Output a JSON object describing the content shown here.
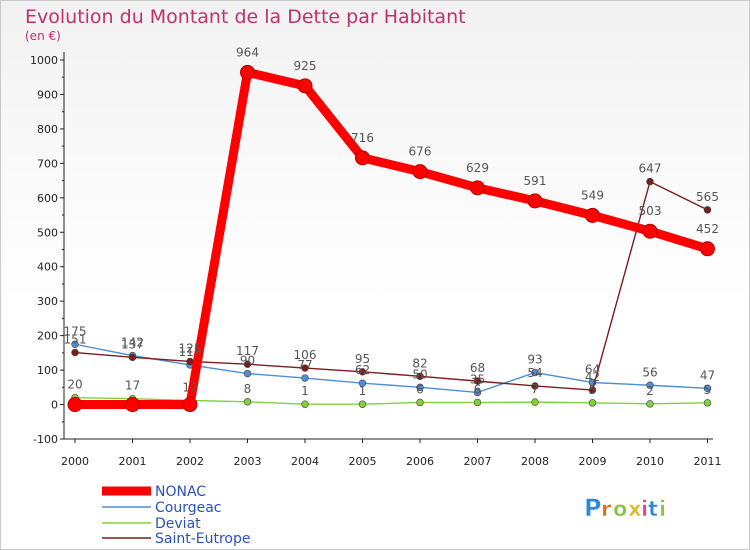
{
  "chart_data": {
    "type": "line",
    "title": "Evolution du Montant de la Dette par Habitant",
    "subtitle": "(en €)",
    "x": [
      "2000",
      "2001",
      "2002",
      "2003",
      "2004",
      "2005",
      "2006",
      "2007",
      "2008",
      "2009",
      "2010",
      "2011"
    ],
    "ylim": [
      -100,
      1000
    ],
    "yticks": [
      -100,
      0,
      100,
      200,
      300,
      400,
      500,
      600,
      700,
      800,
      900,
      1000
    ],
    "series": [
      {
        "name": "NONAC",
        "color": "#ff0000",
        "values": [
          0,
          0,
          0,
          964,
          925,
          716,
          676,
          629,
          591,
          549,
          503,
          452
        ],
        "labels": [
          "",
          "",
          "",
          "964",
          "925",
          "716",
          "676",
          "629",
          "591",
          "549",
          "503",
          "452"
        ]
      },
      {
        "name": "Courgeac",
        "color": "#4d8fd6",
        "values": [
          175,
          142,
          115,
          90,
          77,
          62,
          50,
          35,
          93,
          64,
          56,
          47
        ],
        "labels": [
          "175",
          "142",
          "115",
          "90",
          "77",
          "62",
          "50",
          "35",
          "93",
          "64",
          "56",
          "47"
        ]
      },
      {
        "name": "Deviat",
        "color": "#80d040",
        "values": [
          20,
          17,
          12,
          8,
          1,
          1,
          6,
          6,
          7,
          5,
          2,
          5
        ],
        "labels": [
          "20",
          "17",
          "12",
          "8",
          "1",
          "1",
          "6",
          "6",
          "7",
          "5",
          "2",
          "5"
        ]
      },
      {
        "name": "Saint-Eutrope",
        "color": "#7a1d1d",
        "values": [
          151,
          137,
          125,
          117,
          106,
          95,
          82,
          68,
          54,
          42,
          647,
          565
        ],
        "labels": [
          "151",
          "137",
          "125",
          "117",
          "106",
          "95",
          "82",
          "68",
          "54",
          "42",
          "647",
          "565"
        ]
      }
    ],
    "legend": [
      "NONAC",
      "Courgeac",
      "Deviat",
      "Saint-Eutrope"
    ],
    "legend_position": "bottom-left",
    "grid": false
  },
  "brand": {
    "letters": [
      "P",
      "r",
      "o",
      "x",
      "i",
      "t",
      "i"
    ],
    "colors": [
      "#2e86d6",
      "#e86a1a",
      "#8ac43f",
      "#e8b51a",
      "#d94a8c",
      "#2e86d6",
      "#8ac43f"
    ]
  },
  "colors": {
    "title": "#c0306a",
    "axis": "#222222",
    "legend_text": "#2a52be"
  }
}
